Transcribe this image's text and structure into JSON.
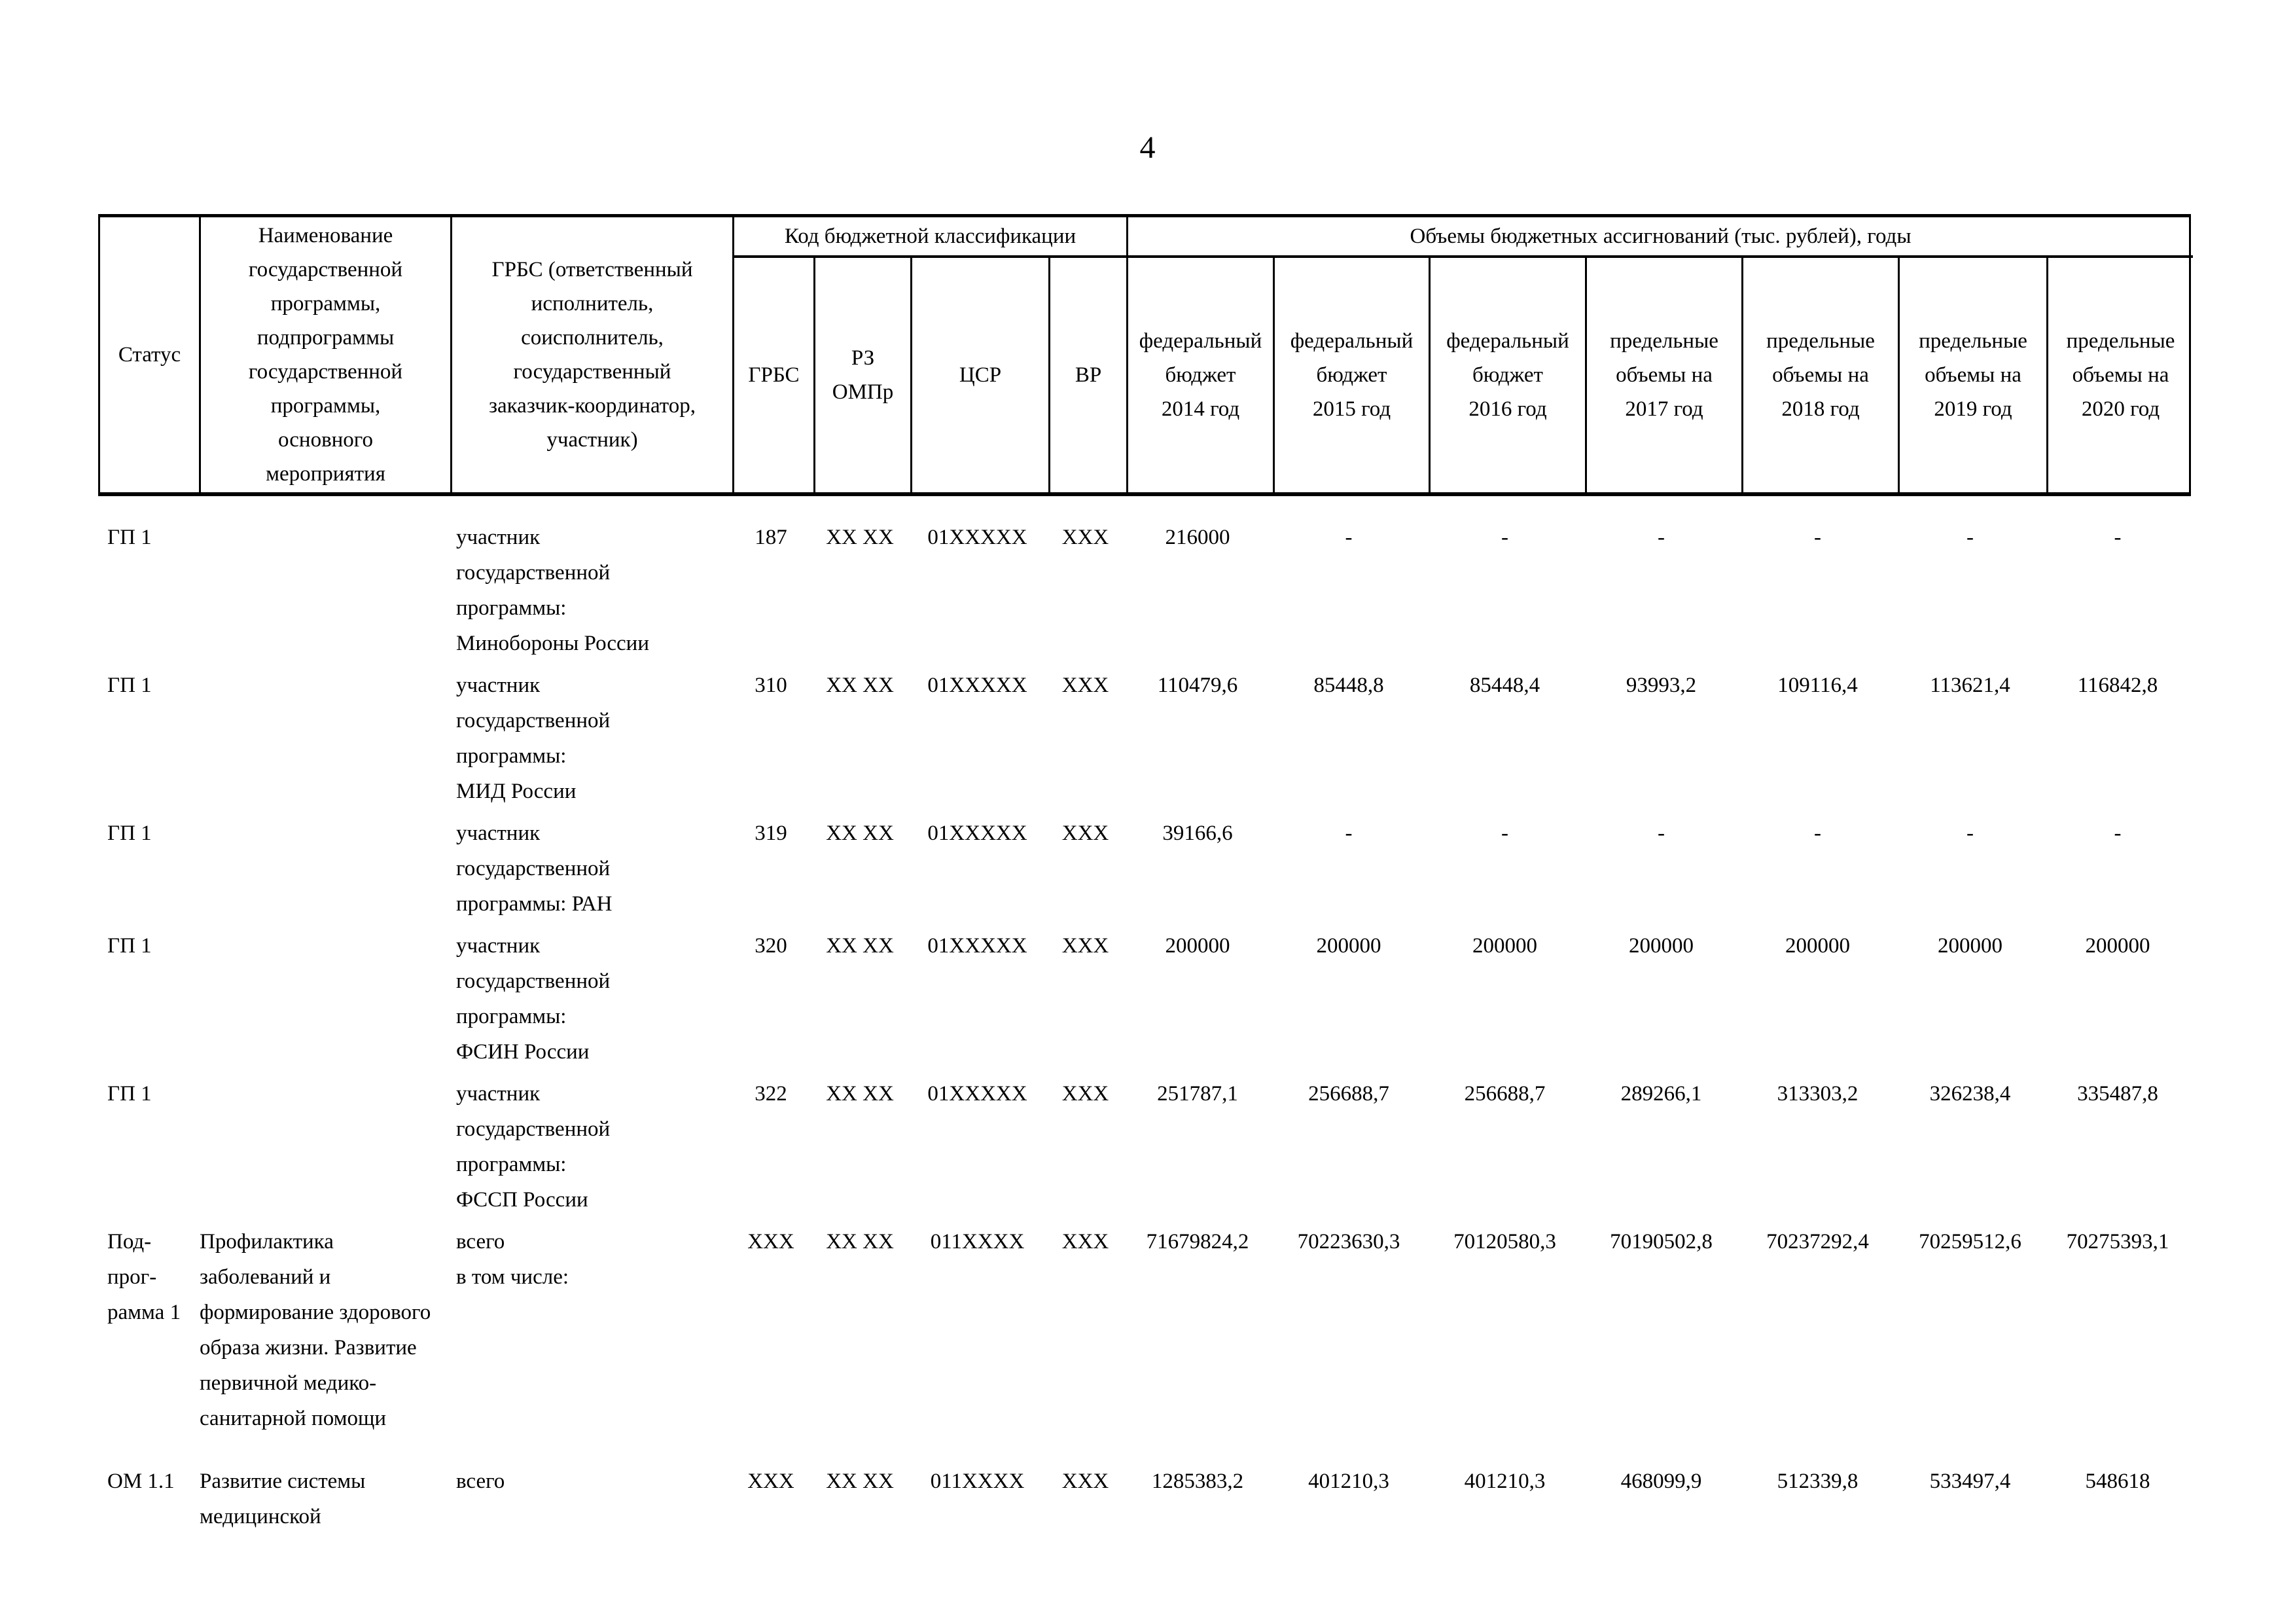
{
  "page": {
    "number": "4"
  },
  "table": {
    "header": {
      "status": "Статус",
      "name": "Наименование\nгосударственной\nпрограммы,\nподпрограммы\nгосударственной\nпрограммы,\nосновного\nмероприятия",
      "grbs_executor": "ГРБС (ответственный\nисполнитель,\nсоисполнитель,\nгосударственный\nзаказчик-координатор,\nучастник)",
      "code_group": "Код бюджетной классификации",
      "volumes_group": "Объемы бюджетных ассигнований (тыс. рублей), годы",
      "code_columns": [
        "ГРБС",
        "РЗ\nОМПр",
        "ЦСР",
        "ВР"
      ],
      "year_columns": [
        "федеральный\nбюджет\n2014 год",
        "федеральный\nбюджет\n2015 год",
        "федеральный\nбюджет\n2016 год",
        "предельные\nобъемы на\n2017 год",
        "предельные\nобъемы на\n2018 год",
        "предельные\nобъемы на\n2019 год",
        "предельные\nобъемы на\n2020 год"
      ]
    },
    "rows": [
      {
        "status": "ГП 1",
        "name": "",
        "grbs": "участник\nгосударственной\nпрограммы:\nМинобороны России",
        "codes": [
          "187",
          "XX XX",
          "01XXXXX",
          "XXX"
        ],
        "values": [
          "216000",
          "-",
          "-",
          "-",
          "-",
          "-",
          "-"
        ]
      },
      {
        "status": "ГП 1",
        "name": "",
        "grbs": "участник\nгосударственной\nпрограммы:\nМИД России",
        "codes": [
          "310",
          "XX XX",
          "01XXXXX",
          "XXX"
        ],
        "values": [
          "110479,6",
          "85448,8",
          "85448,4",
          "93993,2",
          "109116,4",
          "113621,4",
          "116842,8"
        ]
      },
      {
        "status": "ГП 1",
        "name": "",
        "grbs": "участник\nгосударственной\nпрограммы: РАН",
        "codes": [
          "319",
          "XX XX",
          "01XXXXX",
          "XXX"
        ],
        "values": [
          "39166,6",
          "-",
          "-",
          "-",
          "-",
          "-",
          "-"
        ]
      },
      {
        "status": "ГП 1",
        "name": "",
        "grbs": "участник\nгосударственной\nпрограммы:\nФСИН России",
        "codes": [
          "320",
          "XX XX",
          "01XXXXX",
          "XXX"
        ],
        "values": [
          "200000",
          "200000",
          "200000",
          "200000",
          "200000",
          "200000",
          "200000"
        ]
      },
      {
        "status": "ГП 1",
        "name": "",
        "grbs": "участник\nгосударственной\nпрограммы:\nФССП России",
        "codes": [
          "322",
          "XX XX",
          "01XXXXX",
          "XXX"
        ],
        "values": [
          "251787,1",
          "256688,7",
          "256688,7",
          "289266,1",
          "313303,2",
          "326238,4",
          "335487,8"
        ]
      },
      {
        "status": "Под-\nпрог-\nрамма 1",
        "name": "Профилактика заболеваний и формирование здорового образа жизни. Развитие первичной медико-санитарной помощи",
        "grbs": "всего\nв том числе:",
        "codes": [
          "XXX",
          "XX XX",
          "011XXXX",
          "XXX"
        ],
        "values": [
          "71679824,2",
          "70223630,3",
          "70120580,3",
          "70190502,8",
          "70237292,4",
          "70259512,6",
          "70275393,1"
        ]
      },
      {
        "status": "ОМ 1.1",
        "name": "Развитие системы медицинской",
        "grbs": "всего",
        "codes": [
          "XXX",
          "XX XX",
          "011XXXX",
          "XXX"
        ],
        "values": [
          "1285383,2",
          "401210,3",
          "401210,3",
          "468099,9",
          "512339,8",
          "533497,4",
          "548618"
        ]
      }
    ]
  }
}
